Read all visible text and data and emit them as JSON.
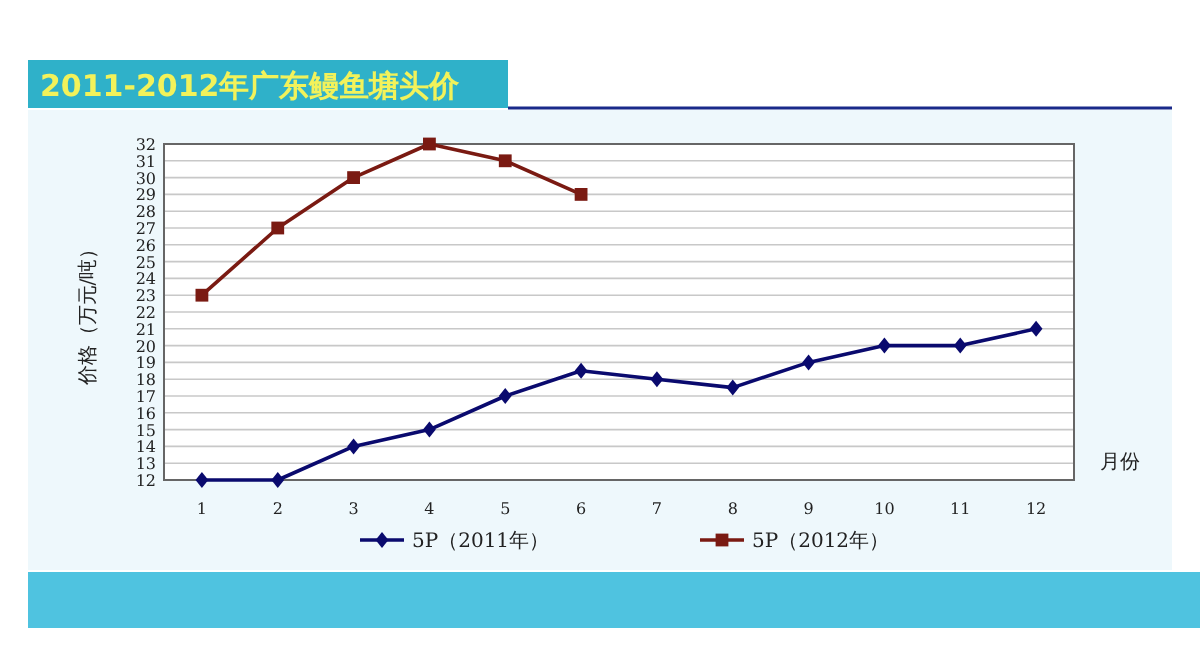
{
  "chart_data": {
    "type": "line",
    "title": "2011-2012年广东鳗鱼塘头价",
    "xlabel": "月份",
    "ylabel": "价格（万元/吨）",
    "categories": [
      "1",
      "2",
      "3",
      "4",
      "5",
      "6",
      "7",
      "8",
      "9",
      "10",
      "11",
      "12"
    ],
    "ylim": [
      12,
      32
    ],
    "yticks": [
      12,
      13,
      14,
      15,
      16,
      17,
      18,
      19,
      20,
      21,
      22,
      23,
      24,
      25,
      26,
      27,
      28,
      29,
      30,
      31,
      32
    ],
    "grid": "y",
    "legend": "bottom",
    "line_style": "solid",
    "series": [
      {
        "name": "5P（2011年）",
        "color": "#0a0a6e",
        "marker": "diamond",
        "values": [
          12,
          12,
          14,
          15,
          17,
          18.5,
          18,
          17.5,
          19,
          20,
          20,
          21
        ]
      },
      {
        "name": "5P（2012年）",
        "color": "#7a1a12",
        "marker": "square",
        "values": [
          23,
          27,
          30,
          32,
          31,
          29,
          null,
          null,
          null,
          null,
          null,
          null
        ]
      }
    ]
  }
}
